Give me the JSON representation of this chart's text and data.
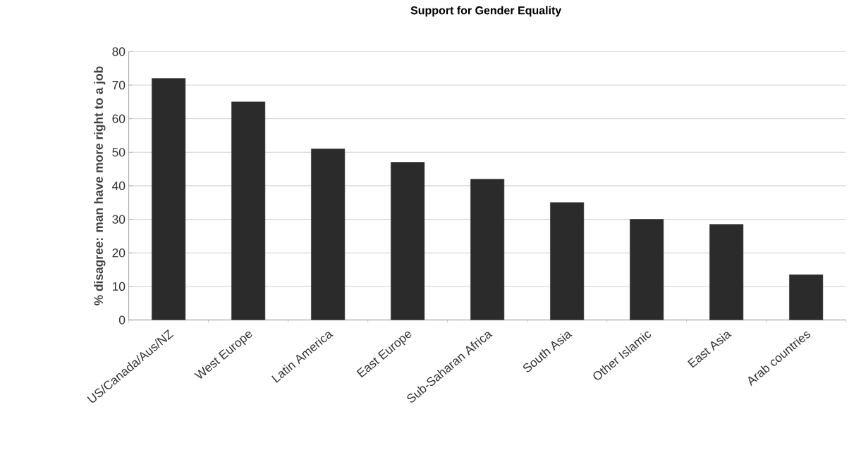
{
  "chart_data": {
    "type": "bar",
    "title": "Support for Gender Equality",
    "ylabel": "% disagree: man have more right to a job",
    "categories": [
      "US/Canada/Aus/NZ",
      "West Europe",
      "Latin America",
      "East Europe",
      "Sub-Saharan Africa",
      "South Asia",
      "Other Islamic",
      "East Asia",
      "Arab countries"
    ],
    "values": [
      72,
      65,
      51,
      47,
      42,
      35,
      30,
      28.5,
      13.5
    ],
    "color": "#2b2b2b",
    "ylim": [
      0,
      80
    ],
    "yticks": [
      0,
      10,
      20,
      30,
      40,
      50,
      60,
      70,
      80
    ],
    "grid": "y"
  }
}
